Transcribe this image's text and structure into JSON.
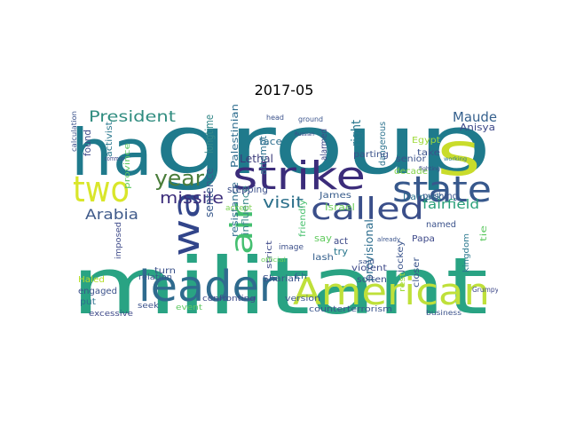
{
  "figure": {
    "title": "2017-05"
  },
  "wordcloud": {
    "background": "#ffffff",
    "colormap": "viridis",
    "words": [
      {
        "text": "group",
        "color": "#1f7a8c"
      },
      {
        "text": "militant",
        "color": "#29a383"
      },
      {
        "text": "ha",
        "color": "#1f7a8c"
      },
      {
        "text": "s",
        "color": "#c9dc2b"
      },
      {
        "text": "leader",
        "color": "#2f6b8e"
      },
      {
        "text": "American",
        "color": "#bfe03a"
      },
      {
        "text": "strike",
        "color": "#3b2c7a"
      },
      {
        "text": "state",
        "color": "#37588c"
      },
      {
        "text": "two",
        "color": "#d9e62a"
      },
      {
        "text": "called",
        "color": "#3b4f8a"
      },
      {
        "text": "wa",
        "color": "#32458a"
      },
      {
        "text": "air",
        "color": "#44bf70"
      },
      {
        "text": "year",
        "color": "#4a7d3a"
      },
      {
        "text": "President",
        "color": "#2f8c7f"
      },
      {
        "text": "visit",
        "color": "#2b6f8a"
      },
      {
        "text": "missile",
        "color": "#3b2c7a"
      },
      {
        "text": "Arabia",
        "color": "#3f5a8a"
      },
      {
        "text": "Maude",
        "color": "#35608d"
      },
      {
        "text": "fairfield",
        "color": "#2aa07a"
      },
      {
        "text": "Lethal",
        "color": "#3b3b7a"
      },
      {
        "text": "right",
        "color": "#2a788e"
      },
      {
        "text": "Palestinian",
        "color": "#2d6c8e"
      },
      {
        "text": "longtime",
        "color": "#36898a"
      },
      {
        "text": "sentence",
        "color": "#3a5a8c"
      },
      {
        "text": "resistance",
        "color": "#2e6e8e"
      },
      {
        "text": "influence",
        "color": "#3b8a8c"
      },
      {
        "text": "attempt",
        "color": "#2c728e"
      },
      {
        "text": "face",
        "color": "#2f6f8e"
      },
      {
        "text": "stepping",
        "color": "#3b4f8a"
      },
      {
        "text": "James",
        "color": "#3a5e8c"
      },
      {
        "text": "Israel",
        "color": "#6ccd5a"
      },
      {
        "text": "accept",
        "color": "#7ad151"
      },
      {
        "text": "friendly",
        "color": "#48c16e"
      },
      {
        "text": "say",
        "color": "#62cb5f"
      },
      {
        "text": "act",
        "color": "#3e4a89"
      },
      {
        "text": "try",
        "color": "#2a788e"
      },
      {
        "text": "lash",
        "color": "#35608d"
      },
      {
        "text": "image",
        "color": "#3b4f8a"
      },
      {
        "text": "Papa",
        "color": "#3e4989"
      },
      {
        "text": "jockey",
        "color": "#3a548c"
      },
      {
        "text": "provisional",
        "color": "#2e6e8e"
      },
      {
        "text": "dangerous",
        "color": "#2c728e"
      },
      {
        "text": "parting",
        "color": "#3b528b"
      },
      {
        "text": "alarmed",
        "color": "#3e4a89"
      },
      {
        "text": "senior",
        "color": "#3b528b"
      },
      {
        "text": "pushing",
        "color": "#3a548c"
      },
      {
        "text": "named",
        "color": "#3b528b"
      },
      {
        "text": "Damask",
        "color": "#2d708e"
      },
      {
        "text": "decade",
        "color": "#85d54a"
      },
      {
        "text": "Egypt",
        "color": "#9fda3a"
      },
      {
        "text": "take",
        "color": "#3b528b"
      },
      {
        "text": "Anisya",
        "color": "#3e4989"
      },
      {
        "text": "tie",
        "color": "#5ec962"
      },
      {
        "text": "kingdom",
        "color": "#2a788e"
      },
      {
        "text": "closer",
        "color": "#3a548c"
      },
      {
        "text": "rest",
        "color": "#9fda3a"
      },
      {
        "text": "soften",
        "color": "#3b528b"
      },
      {
        "text": "violent",
        "color": "#3e4a89"
      },
      {
        "text": "Shariah",
        "color": "#3b528b"
      },
      {
        "text": "strict",
        "color": "#3e4989"
      },
      {
        "text": "Eh",
        "color": "#2d708e"
      },
      {
        "text": "turn",
        "color": "#3b528b"
      },
      {
        "text": "version",
        "color": "#3a548c"
      },
      {
        "text": "event",
        "color": "#5ec962"
      },
      {
        "text": "confronting",
        "color": "#3e4a89"
      },
      {
        "text": "seek",
        "color": "#3b528b"
      },
      {
        "text": "excessive",
        "color": "#3e4989"
      },
      {
        "text": "put",
        "color": "#2d708e"
      },
      {
        "text": "engaged",
        "color": "#3b528b"
      },
      {
        "text": "Haled",
        "color": "#b5de2b"
      },
      {
        "text": "imposed",
        "color": "#3e4a89"
      },
      {
        "text": "relation",
        "color": "#3a548c"
      },
      {
        "text": "province",
        "color": "#5ec962"
      },
      {
        "text": "activist",
        "color": "#2a788e"
      },
      {
        "text": "found",
        "color": "#3e4989"
      },
      {
        "text": "counterterrorism",
        "color": "#3a548c"
      },
      {
        "text": "business",
        "color": "#3b528b"
      },
      {
        "text": "Grumpy",
        "color": "#3e4989"
      },
      {
        "text": "calculation",
        "color": "#3b528b"
      },
      {
        "text": "common",
        "color": "#3e4989"
      },
      {
        "text": "head",
        "color": "#3b528b"
      },
      {
        "text": "ground",
        "color": "#3a548c"
      },
      {
        "text": "Russian",
        "color": "#3e4989"
      },
      {
        "text": "said",
        "color": "#3b528b"
      },
      {
        "text": "already",
        "color": "#3a548c"
      },
      {
        "text": "fighting",
        "color": "#3e4989"
      },
      {
        "text": "working",
        "color": "#2a788e"
      },
      {
        "text": "official",
        "color": "#6ccd5a"
      }
    ]
  }
}
